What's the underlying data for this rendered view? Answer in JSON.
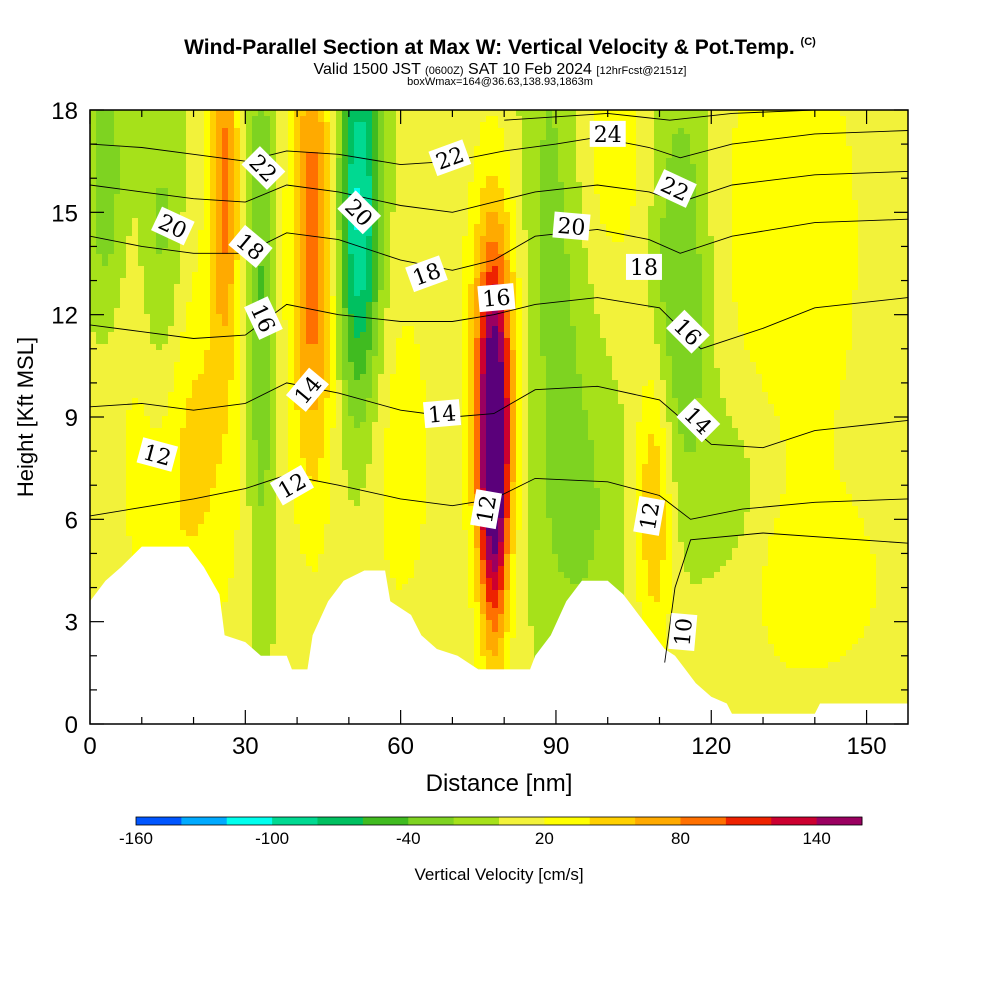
{
  "title": {
    "main": "Wind-Parallel Section at Max W: Vertical Velocity & Pot.Temp.",
    "copyright": "(C)",
    "valid_prefix": "Valid 1500 JST",
    "valid_utc": "(0600Z)",
    "valid_date": "SAT 10 Feb 2024",
    "forecast": "[12hrFcst@2151z]",
    "box": "boxWmax=164@36.63,138.93,1863m"
  },
  "chart_data": {
    "type": "heatmap",
    "xlabel": "Distance [nm]",
    "ylabel": "Height [Kft MSL]",
    "xlim": [
      0,
      158
    ],
    "ylim": [
      0,
      18
    ],
    "x_ticks": [
      0,
      30,
      60,
      90,
      120,
      150
    ],
    "y_ticks": [
      0,
      3,
      6,
      9,
      12,
      15,
      18
    ],
    "colorbar": {
      "label": "Vertical Velocity [cm/s]",
      "levels": [
        -160,
        -140,
        -120,
        -100,
        -80,
        -60,
        -40,
        -20,
        0,
        20,
        40,
        60,
        80,
        100,
        120,
        140,
        160
      ],
      "tick_labels": [
        -160,
        -100,
        -40,
        20,
        80,
        140
      ],
      "colors": [
        "#0000ff",
        "#0055ff",
        "#00aaff",
        "#00ffee",
        "#00d991",
        "#00c060",
        "#40bb20",
        "#7ed321",
        "#a6e11a",
        "#f2f23a",
        "#ffff00",
        "#ffd000",
        "#ffaa00",
        "#ff7000",
        "#ee2200",
        "#cc0030",
        "#9a0060",
        "#5a007a"
      ]
    },
    "terrain_kft": [
      [
        0,
        3.6
      ],
      [
        3,
        4.2
      ],
      [
        6,
        4.6
      ],
      [
        10,
        5.2
      ],
      [
        19,
        5.2
      ],
      [
        22,
        4.6
      ],
      [
        25,
        3.8
      ],
      [
        26,
        2.6
      ],
      [
        30,
        2.4
      ],
      [
        33,
        2.0
      ],
      [
        38,
        2.0
      ],
      [
        39,
        1.6
      ],
      [
        42,
        1.6
      ],
      [
        43,
        2.6
      ],
      [
        46,
        3.6
      ],
      [
        49,
        4.2
      ],
      [
        53,
        4.5
      ],
      [
        57,
        4.5
      ],
      [
        58,
        3.6
      ],
      [
        62,
        3.2
      ],
      [
        64,
        2.6
      ],
      [
        67,
        2.2
      ],
      [
        71,
        2.0
      ],
      [
        75,
        1.6
      ],
      [
        85,
        1.6
      ],
      [
        86,
        2.0
      ],
      [
        89,
        2.6
      ],
      [
        92,
        3.6
      ],
      [
        95,
        4.2
      ],
      [
        100,
        4.2
      ],
      [
        103,
        3.8
      ],
      [
        106,
        3.2
      ],
      [
        109,
        2.6
      ],
      [
        111,
        2.2
      ],
      [
        113,
        2.0
      ],
      [
        115,
        1.6
      ],
      [
        117,
        1.2
      ],
      [
        120,
        0.8
      ],
      [
        123,
        0.6
      ],
      [
        124,
        0.3
      ],
      [
        128,
        0.3
      ],
      [
        140,
        0.3
      ],
      [
        141,
        0.6
      ],
      [
        158,
        0.6
      ]
    ],
    "w_features": [
      {
        "x": 78,
        "y": 7.5,
        "w": 160,
        "sx": 2.0,
        "sy": 3.5
      },
      {
        "x": 78,
        "y": 10.5,
        "w": 80,
        "sx": 3.5,
        "sy": 4.0
      },
      {
        "x": 43,
        "y": 14.0,
        "w": 90,
        "sx": 3.0,
        "sy": 5.0
      },
      {
        "x": 26,
        "y": 16.0,
        "w": 80,
        "sx": 2.0,
        "sy": 3.5
      },
      {
        "x": 52,
        "y": 15.0,
        "w": -110,
        "sx": 3.0,
        "sy": 4.0
      },
      {
        "x": 33,
        "y": 12.0,
        "w": -50,
        "sx": 2.0,
        "sy": 6.0
      },
      {
        "x": 14,
        "y": 13.0,
        "w": -40,
        "sx": 3.0,
        "sy": 4.0
      },
      {
        "x": 3,
        "y": 16.0,
        "w": -40,
        "sx": 2.5,
        "sy": 3.0
      },
      {
        "x": 90,
        "y": 15.0,
        "w": -35,
        "sx": 5.0,
        "sy": 6.0
      },
      {
        "x": 114,
        "y": 13.0,
        "w": -50,
        "sx": 4.0,
        "sy": 4.5
      },
      {
        "x": 109,
        "y": 6.5,
        "w": 60,
        "sx": 2.5,
        "sy": 3.0
      },
      {
        "x": 18,
        "y": 8.0,
        "w": 45,
        "sx": 8.0,
        "sy": 4.0
      },
      {
        "x": 100,
        "y": 17.0,
        "w": 30,
        "sx": 6.0,
        "sy": 3.0
      },
      {
        "x": 135,
        "y": 14.0,
        "w": 35,
        "sx": 10.0,
        "sy": 5.0
      },
      {
        "x": 137,
        "y": 4.0,
        "w": 30,
        "sx": 12.0,
        "sy": 2.0
      },
      {
        "x": 60,
        "y": 8.0,
        "w": 25,
        "sx": 5.0,
        "sy": 4.0
      },
      {
        "x": 125,
        "y": 6.0,
        "w": -25,
        "sx": 6.0,
        "sy": 3.0
      },
      {
        "x": 95,
        "y": 6.0,
        "w": -25,
        "sx": 6.0,
        "sy": 3.0
      }
    ],
    "theta_lines": [
      {
        "level": 10,
        "pts": [
          [
            111,
            1.8
          ],
          [
            113,
            4.0
          ],
          [
            116,
            5.4
          ],
          [
            130,
            5.6
          ],
          [
            158,
            5.3
          ]
        ]
      },
      {
        "level": 12,
        "pts": [
          [
            0,
            6.1
          ],
          [
            8,
            6.3
          ],
          [
            20,
            6.6
          ],
          [
            30,
            6.9
          ],
          [
            38,
            7.3
          ],
          [
            48,
            7.0
          ],
          [
            60,
            6.6
          ],
          [
            70,
            6.4
          ],
          [
            78,
            6.6
          ],
          [
            86,
            7.2
          ],
          [
            100,
            7.1
          ],
          [
            110,
            6.7
          ],
          [
            116,
            6.0
          ],
          [
            126,
            6.3
          ],
          [
            140,
            6.5
          ],
          [
            158,
            6.6
          ]
        ]
      },
      {
        "level": 14,
        "pts": [
          [
            0,
            9.3
          ],
          [
            10,
            9.4
          ],
          [
            20,
            9.2
          ],
          [
            30,
            9.4
          ],
          [
            38,
            10.0
          ],
          [
            48,
            9.7
          ],
          [
            60,
            9.2
          ],
          [
            70,
            9.0
          ],
          [
            78,
            9.1
          ],
          [
            86,
            9.8
          ],
          [
            98,
            9.9
          ],
          [
            110,
            9.5
          ],
          [
            120,
            8.2
          ],
          [
            130,
            8.1
          ],
          [
            140,
            8.6
          ],
          [
            158,
            8.9
          ]
        ]
      },
      {
        "level": 16,
        "pts": [
          [
            0,
            11.7
          ],
          [
            10,
            11.5
          ],
          [
            20,
            11.3
          ],
          [
            30,
            11.4
          ],
          [
            38,
            12.3
          ],
          [
            48,
            12.0
          ],
          [
            60,
            11.8
          ],
          [
            70,
            11.8
          ],
          [
            78,
            12.0
          ],
          [
            86,
            12.3
          ],
          [
            98,
            12.5
          ],
          [
            110,
            12.2
          ],
          [
            118,
            11.0
          ],
          [
            130,
            11.6
          ],
          [
            140,
            12.2
          ],
          [
            158,
            12.5
          ]
        ]
      },
      {
        "level": 18,
        "pts": [
          [
            0,
            14.3
          ],
          [
            10,
            14.0
          ],
          [
            20,
            13.8
          ],
          [
            30,
            13.8
          ],
          [
            38,
            14.4
          ],
          [
            48,
            14.2
          ],
          [
            60,
            13.6
          ],
          [
            70,
            13.3
          ],
          [
            78,
            13.6
          ],
          [
            86,
            14.3
          ],
          [
            98,
            14.5
          ],
          [
            108,
            14.2
          ],
          [
            114,
            13.8
          ],
          [
            124,
            14.3
          ],
          [
            140,
            14.7
          ],
          [
            158,
            14.8
          ]
        ]
      },
      {
        "level": 20,
        "pts": [
          [
            0,
            15.8
          ],
          [
            10,
            15.6
          ],
          [
            20,
            15.4
          ],
          [
            30,
            15.3
          ],
          [
            38,
            15.8
          ],
          [
            48,
            15.6
          ],
          [
            60,
            15.2
          ],
          [
            70,
            15.0
          ],
          [
            78,
            15.3
          ],
          [
            86,
            15.6
          ],
          [
            98,
            15.8
          ],
          [
            108,
            15.6
          ],
          [
            114,
            15.3
          ],
          [
            124,
            15.8
          ],
          [
            140,
            16.1
          ],
          [
            158,
            16.2
          ]
        ]
      },
      {
        "level": 22,
        "pts": [
          [
            0,
            17.0
          ],
          [
            10,
            16.9
          ],
          [
            20,
            16.7
          ],
          [
            30,
            16.5
          ],
          [
            38,
            16.8
          ],
          [
            48,
            16.7
          ],
          [
            60,
            16.4
          ],
          [
            70,
            16.5
          ],
          [
            80,
            16.8
          ],
          [
            90,
            17.0
          ],
          [
            98,
            17.2
          ],
          [
            108,
            16.9
          ],
          [
            114,
            16.6
          ],
          [
            124,
            17.0
          ],
          [
            140,
            17.3
          ],
          [
            158,
            17.4
          ]
        ]
      },
      {
        "level": 24,
        "pts": [
          [
            80,
            17.7
          ],
          [
            90,
            17.8
          ],
          [
            100,
            17.9
          ],
          [
            112,
            17.7
          ],
          [
            124,
            17.9
          ],
          [
            140,
            18.0
          ]
        ]
      }
    ],
    "theta_labels": [
      {
        "text": "12",
        "x": 13,
        "y": 7.9,
        "rot": 15
      },
      {
        "text": "12",
        "x": 39,
        "y": 7.0,
        "rot": -30
      },
      {
        "text": "12",
        "x": 76.5,
        "y": 6.3,
        "rot": -80
      },
      {
        "text": "12",
        "x": 108,
        "y": 6.1,
        "rot": -80
      },
      {
        "text": "10",
        "x": 114.5,
        "y": 2.7,
        "rot": -85
      },
      {
        "text": "14",
        "x": 42,
        "y": 9.8,
        "rot": -50
      },
      {
        "text": "14",
        "x": 68,
        "y": 9.1,
        "rot": -5
      },
      {
        "text": "14",
        "x": 117.5,
        "y": 8.9,
        "rot": 45
      },
      {
        "text": "16",
        "x": 33.5,
        "y": 11.9,
        "rot": 65
      },
      {
        "text": "16",
        "x": 78.5,
        "y": 12.5,
        "rot": -5
      },
      {
        "text": "16",
        "x": 115.5,
        "y": 11.5,
        "rot": 45
      },
      {
        "text": "18",
        "x": 31,
        "y": 14.0,
        "rot": 40
      },
      {
        "text": "18",
        "x": 65,
        "y": 13.2,
        "rot": -20
      },
      {
        "text": "18",
        "x": 107,
        "y": 13.4,
        "rot": 0
      },
      {
        "text": "20",
        "x": 16,
        "y": 14.6,
        "rot": 25
      },
      {
        "text": "20",
        "x": 52,
        "y": 15.0,
        "rot": 45
      },
      {
        "text": "20",
        "x": 93,
        "y": 14.6,
        "rot": 5
      },
      {
        "text": "22",
        "x": 33.5,
        "y": 16.3,
        "rot": 45
      },
      {
        "text": "22",
        "x": 69.5,
        "y": 16.6,
        "rot": -20
      },
      {
        "text": "22",
        "x": 113,
        "y": 15.7,
        "rot": 25
      },
      {
        "text": "24",
        "x": 100,
        "y": 17.3,
        "rot": 0
      }
    ]
  }
}
